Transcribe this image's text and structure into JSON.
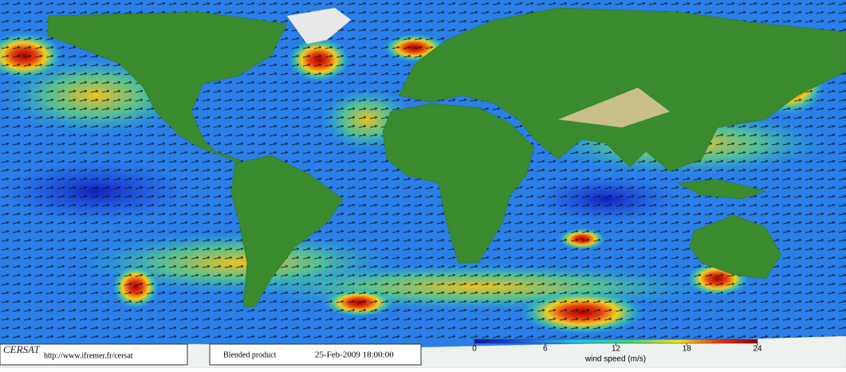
{
  "logo": "CERSAT",
  "url": "http://www.ifremer.fr/cersat",
  "product": "Blended product",
  "date": "25-Feb-2009 18:00:00",
  "colorbar": {
    "label": "wind speed (m/s)",
    "lim": [
      0,
      24
    ],
    "ticks": [
      0,
      6,
      12,
      18,
      24
    ]
  }
}
